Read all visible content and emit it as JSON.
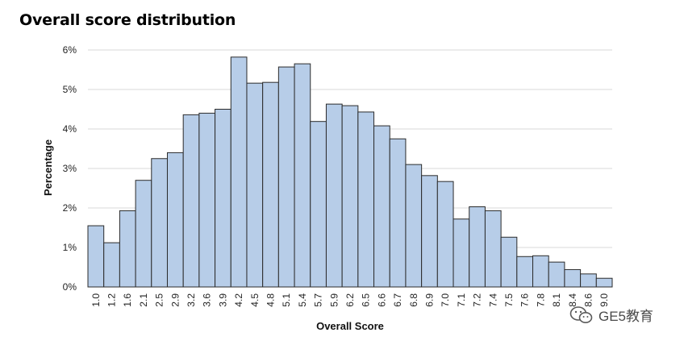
{
  "chart_data": {
    "type": "bar",
    "title": "Overall score distribution",
    "xlabel": "Overall Score",
    "ylabel": "Percentage",
    "ylim": [
      0,
      6
    ],
    "yticks": [
      "0%",
      "1%",
      "2%",
      "3%",
      "4%",
      "5%",
      "6%"
    ],
    "grid": true,
    "categories": [
      "1.0",
      "1.2",
      "1.6",
      "2.1",
      "2.5",
      "2.9",
      "3.2",
      "3.6",
      "3.9",
      "4.2",
      "4.5",
      "4.8",
      "5.1",
      "5.4",
      "5.7",
      "5.9",
      "6.2",
      "6.5",
      "6.6",
      "6.7",
      "6.8",
      "6.9",
      "7.0",
      "7.1",
      "7.2",
      "7.4",
      "7.5",
      "7.6",
      "7.8",
      "8.1",
      "8.4",
      "8.6",
      "9.0"
    ],
    "values": [
      1.55,
      1.12,
      1.93,
      2.7,
      3.25,
      3.4,
      4.36,
      4.4,
      4.5,
      5.82,
      5.16,
      5.18,
      5.57,
      5.65,
      4.19,
      4.63,
      4.59,
      4.43,
      4.08,
      3.75,
      3.1,
      2.82,
      2.67,
      1.72,
      2.03,
      1.93,
      1.26,
      0.77,
      0.79,
      0.63,
      0.44,
      0.33,
      0.22
    ],
    "bar_color": "#b7cde8",
    "bar_edge": "#2b2b2b"
  },
  "watermark": {
    "text": "GE5教育",
    "icon": "wechat-icon"
  }
}
